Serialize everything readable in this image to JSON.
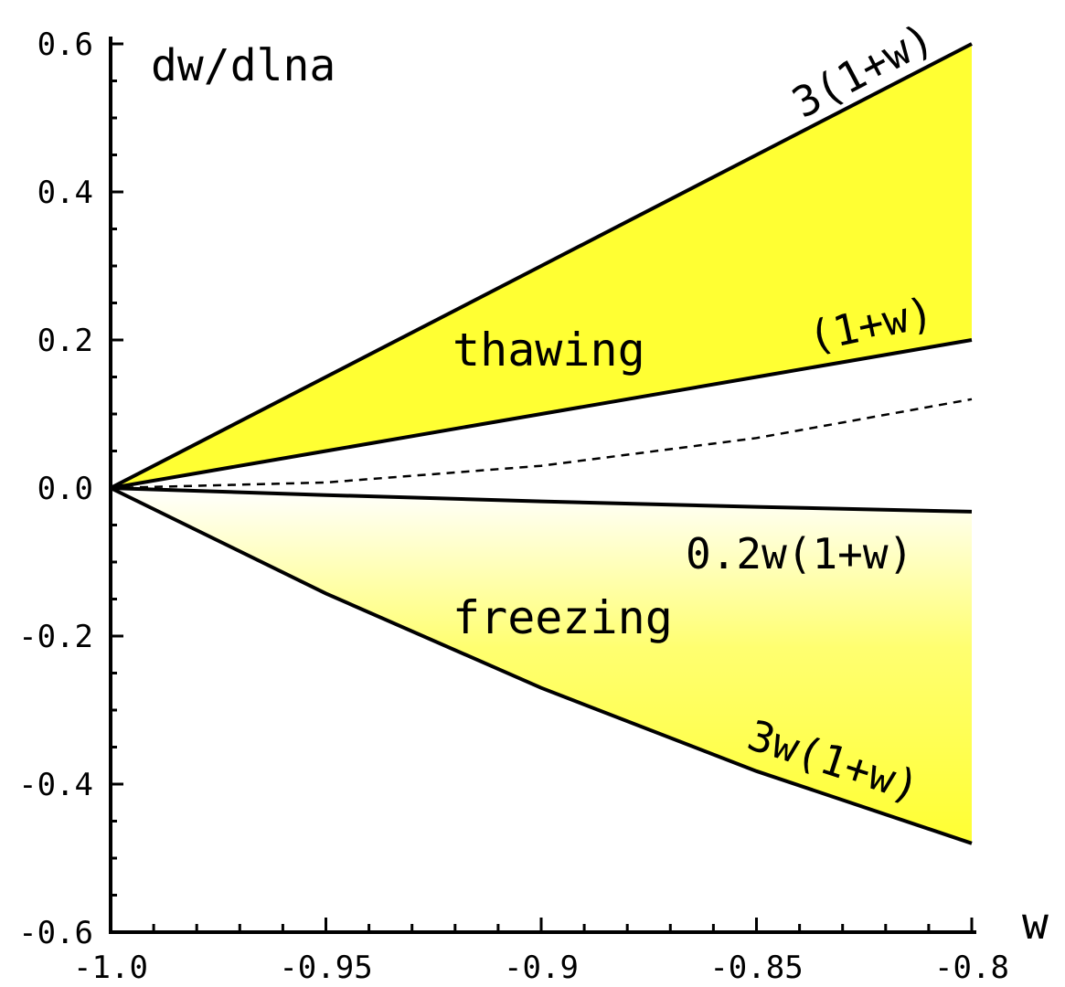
{
  "chart_data": {
    "type": "line",
    "xlabel": "w",
    "ylabel": "dw/dlna",
    "xlim": [
      -1.0,
      -0.8
    ],
    "ylim": [
      -0.6,
      0.6
    ],
    "x_ticks": [
      -1.0,
      -0.95,
      -0.9,
      -0.85,
      -0.8
    ],
    "x_tick_labels": [
      "-1.0",
      "-0.95",
      "-0.9",
      "-0.85",
      "-0.8"
    ],
    "y_ticks": [
      -0.6,
      -0.4,
      -0.2,
      0.0,
      0.2,
      0.4,
      0.6
    ],
    "y_tick_labels": [
      "-0.6",
      "-0.4",
      "-0.2",
      "0.0",
      "0.2",
      "0.4",
      "0.6"
    ],
    "grid": false,
    "colors": {
      "thawing_fill": "#ffff33",
      "freezing_fill": "#ffff33",
      "line": "#000000"
    },
    "series": [
      {
        "name": "3(1+w)",
        "x": [
          -1.0,
          -0.95,
          -0.9,
          -0.85,
          -0.8
        ],
        "y": [
          0.0,
          0.15,
          0.3,
          0.45,
          0.6
        ],
        "style": "solid"
      },
      {
        "name": "(1+w)",
        "x": [
          -1.0,
          -0.95,
          -0.9,
          -0.85,
          -0.8
        ],
        "y": [
          0.0,
          0.05,
          0.1,
          0.15,
          0.2
        ],
        "style": "solid"
      },
      {
        "x": [
          -1.0,
          -0.95,
          -0.9,
          -0.85,
          -0.8
        ],
        "y": [
          0.0,
          0.0075,
          0.03,
          0.0675,
          0.12
        ],
        "style": "dashed"
      },
      {
        "name": "0.2w(1+w)",
        "x": [
          -1.0,
          -0.95,
          -0.9,
          -0.85,
          -0.8
        ],
        "y": [
          0.0,
          -0.0095,
          -0.018,
          -0.0255,
          -0.032
        ],
        "style": "solid"
      },
      {
        "name": "3w(1+w)",
        "x": [
          -1.0,
          -0.95,
          -0.9,
          -0.85,
          -0.8
        ],
        "y": [
          0.0,
          -0.1425,
          -0.27,
          -0.3825,
          -0.48
        ],
        "style": "solid"
      }
    ],
    "regions": [
      {
        "label": "thawing",
        "between": [
          "(1+w)",
          "3(1+w)"
        ]
      },
      {
        "label": "freezing",
        "between": [
          "3w(1+w)",
          "0.2w(1+w)"
        ]
      }
    ],
    "annotations": [
      "3(1+w)",
      "(1+w)",
      "0.2w(1+w)",
      "3w(1+w)",
      "thawing",
      "freezing"
    ]
  }
}
